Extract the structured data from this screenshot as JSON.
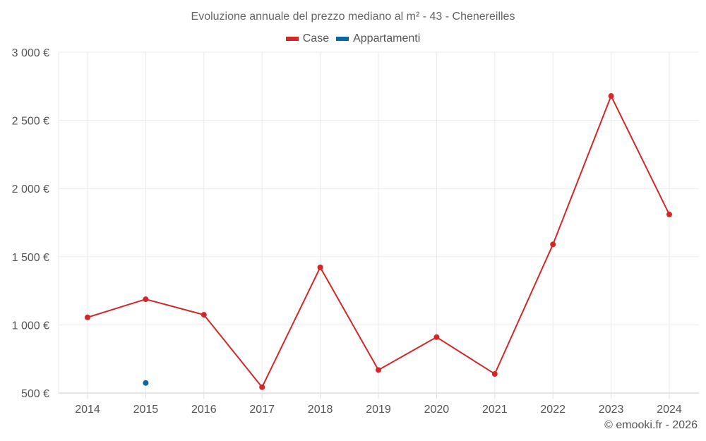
{
  "chart_data": {
    "type": "line",
    "title": "Evoluzione annuale del prezzo mediano al m² - 43 - Chenereilles",
    "xlabel": "",
    "ylabel": "",
    "categories": [
      "2014",
      "2015",
      "2016",
      "2017",
      "2018",
      "2019",
      "2020",
      "2021",
      "2022",
      "2023",
      "2024"
    ],
    "series": [
      {
        "name": "Case",
        "color": "#d62728",
        "values": [
          1055,
          1188,
          1074,
          543,
          1422,
          669,
          910,
          640,
          1590,
          2679,
          1810
        ]
      },
      {
        "name": "Appartamenti",
        "color": "#0868a5",
        "values": [
          null,
          574,
          null,
          null,
          null,
          null,
          null,
          null,
          null,
          null,
          null
        ]
      }
    ],
    "ylim": [
      500,
      3000
    ],
    "yticks": [
      500,
      1000,
      1500,
      2000,
      2500,
      3000
    ],
    "ytick_labels": [
      "500 €",
      "1 000 €",
      "1 500 €",
      "2 000 €",
      "2 500 €",
      "3 000 €"
    ],
    "grid": true,
    "legend_position": "top"
  },
  "legend": {
    "items": [
      {
        "label": "Case",
        "color": "#d62728"
      },
      {
        "label": "Appartamenti",
        "color": "#0868a5"
      }
    ]
  },
  "credit": "© emooki.fr - 2026"
}
